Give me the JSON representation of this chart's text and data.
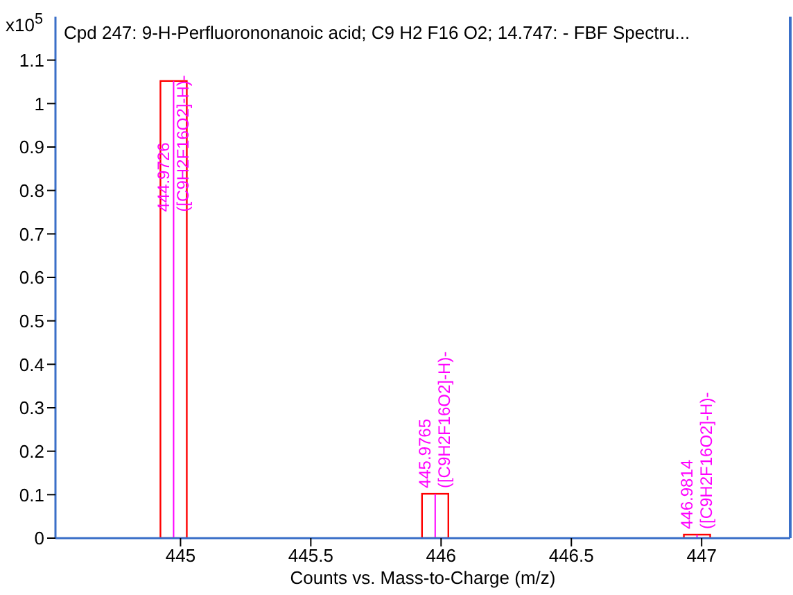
{
  "chart_data": {
    "type": "bar",
    "title": "Cpd 247: 9-H-Perfluorononanoic acid; C9 H2 F16 O2; 14.747: - FBF Spectru...",
    "xlabel": "Counts vs. Mass-to-Charge (m/z)",
    "ylabel": "x10$^{5}$",
    "x": [
      444.9726,
      445.9765,
      446.9814
    ],
    "series": [
      {
        "color": "#ff0000",
        "values": [
          1.052,
          0.102,
          0.008
        ]
      },
      {
        "color": "#ff00ff",
        "values": [
          1.052,
          0.102,
          0.008
        ]
      }
    ],
    "xlim": [
      444.52,
      447.34
    ],
    "xticks": [
      445,
      445.5,
      446,
      446.5,
      447
    ],
    "ylim": [
      0,
      1.2
    ],
    "yticks": [
      0,
      0.1,
      0.2,
      0.3,
      0.4,
      0.5,
      0.6,
      0.7,
      0.8,
      0.9,
      1,
      1.1
    ],
    "annotations": [
      {
        "text": "444.9726\n([C9H2F16O2]-H)-",
        "x": 444.9726,
        "y": 1.052
      },
      {
        "text": "445.9765\n([C9H2F16O2]-H)-",
        "x": 445.9765,
        "y": 0.102
      },
      {
        "text": "446.9814\n([C9H2F16O2]-H)-",
        "x": 446.9814,
        "y": 0.008
      }
    ],
    "grid": false,
    "legend": false
  }
}
